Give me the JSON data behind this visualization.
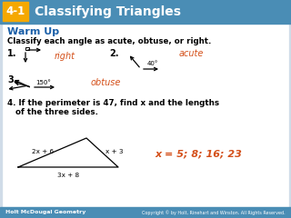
{
  "title_box_color": "#f5a800",
  "title_box_text": "4-1",
  "title_text": "Classifying Triangles",
  "title_bg_color": "#4a8db5",
  "title_text_color": "#ffffff",
  "warm_up_color": "#1a5fa8",
  "warm_up_text": "Warm Up",
  "instruction_text": "Classify each angle as acute, obtuse, or right.",
  "answer_color": "#d4501a",
  "bg_color": "#d0dce8",
  "content_bg": "#ffffff",
  "footer_bg": "#4a8db5",
  "footer_left": "Holt McDougal Geometry",
  "footer_right": "Copyright © by Holt, Rinehart and Winston. All Rights Reserved.",
  "answer1": "right",
  "answer2": "acute",
  "answer3": "obtuse",
  "answer4": "x = 5; 8; 16; 23",
  "q4_line1": "4. If the perimeter is 47, find x and the lengths",
  "q4_line2": "   of the three sides.",
  "angle2_label": "40°",
  "angle3_label": "150°",
  "side1_label": "2x + 6",
  "side2_label": "x + 3",
  "side3_label": "3x + 8"
}
